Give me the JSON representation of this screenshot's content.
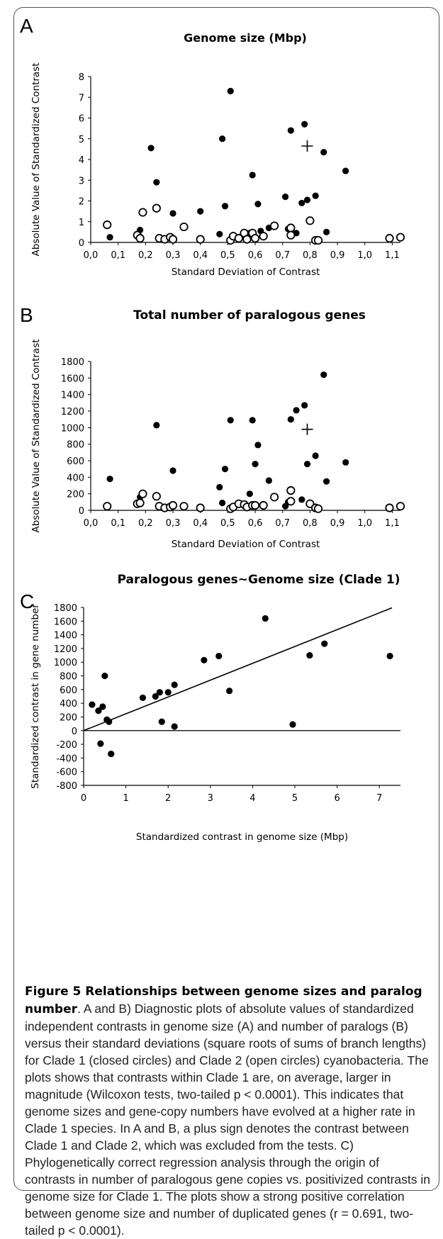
{
  "chart_data": [
    {
      "type": "scatter",
      "panel": "A",
      "title": "Genome size (Mbp)",
      "xlabel": "Standard Deviation of Contrast",
      "ylabel": "Absolute Value of Standardized Contrast",
      "xlim": [
        0,
        1.13
      ],
      "ylim": [
        0,
        8
      ],
      "xticks": [
        "0,0",
        "0,1",
        "0,2",
        "0,3",
        "0,4",
        "0,5",
        "0,6",
        "0,7",
        "0,8",
        "0,9",
        "1,0",
        "1,1"
      ],
      "yticks": [
        "0",
        "1",
        "2",
        "3",
        "4",
        "5",
        "6",
        "7",
        "8"
      ],
      "series": [
        {
          "name": "Clade 1",
          "marker": "closed",
          "points": [
            [
              0.07,
              0.25
            ],
            [
              0.18,
              0.6
            ],
            [
              0.22,
              4.55
            ],
            [
              0.24,
              2.9
            ],
            [
              0.3,
              1.4
            ],
            [
              0.4,
              1.5
            ],
            [
              0.47,
              0.4
            ],
            [
              0.48,
              5.0
            ],
            [
              0.49,
              1.75
            ],
            [
              0.51,
              7.3
            ],
            [
              0.58,
              0.45
            ],
            [
              0.59,
              3.25
            ],
            [
              0.59,
              0.35
            ],
            [
              0.61,
              1.85
            ],
            [
              0.62,
              0.55
            ],
            [
              0.65,
              0.7
            ],
            [
              0.71,
              2.2
            ],
            [
              0.72,
              0.65
            ],
            [
              0.73,
              5.4
            ],
            [
              0.75,
              0.45
            ],
            [
              0.77,
              1.9
            ],
            [
              0.78,
              5.7
            ],
            [
              0.79,
              2.05
            ],
            [
              0.82,
              2.25
            ],
            [
              0.85,
              4.35
            ],
            [
              0.86,
              0.5
            ],
            [
              0.93,
              3.45
            ]
          ]
        },
        {
          "name": "Clade 2",
          "marker": "open",
          "points": [
            [
              0.06,
              0.85
            ],
            [
              0.17,
              0.35
            ],
            [
              0.18,
              0.2
            ],
            [
              0.19,
              1.45
            ],
            [
              0.24,
              1.65
            ],
            [
              0.25,
              0.2
            ],
            [
              0.27,
              0.15
            ],
            [
              0.29,
              0.25
            ],
            [
              0.3,
              0.15
            ],
            [
              0.34,
              0.75
            ],
            [
              0.4,
              0.15
            ],
            [
              0.51,
              0.1
            ],
            [
              0.52,
              0.3
            ],
            [
              0.54,
              0.2
            ],
            [
              0.56,
              0.45
            ],
            [
              0.57,
              0.15
            ],
            [
              0.59,
              0.45
            ],
            [
              0.6,
              0.2
            ],
            [
              0.63,
              0.3
            ],
            [
              0.67,
              0.8
            ],
            [
              0.73,
              0.7
            ],
            [
              0.73,
              0.35
            ],
            [
              0.8,
              1.05
            ],
            [
              0.82,
              0.1
            ],
            [
              0.83,
              0.1
            ],
            [
              1.09,
              0.2
            ],
            [
              1.13,
              0.25
            ]
          ]
        },
        {
          "name": "Clade 1 vs Clade 2",
          "marker": "plus",
          "points": [
            [
              0.79,
              4.65
            ]
          ]
        }
      ]
    },
    {
      "type": "scatter",
      "panel": "B",
      "title": "Total number of paralogous genes",
      "xlabel": "Standard Deviation of Contrast",
      "ylabel": "Absolute Value of Standardized Contrast",
      "xlim": [
        0,
        1.13
      ],
      "ylim": [
        0,
        1800
      ],
      "xticks": [
        "0,0",
        "0,1",
        "0,2",
        "0,3",
        "0,4",
        "0,5",
        "0,6",
        "0,7",
        "0,8",
        "0,9",
        "1,0",
        "1,1"
      ],
      "yticks": [
        "0",
        "200",
        "400",
        "600",
        "800",
        "1000",
        "1200",
        "1400",
        "1600",
        "1800"
      ],
      "series": [
        {
          "name": "Clade 1",
          "marker": "closed",
          "points": [
            [
              0.07,
              380
            ],
            [
              0.18,
              160
            ],
            [
              0.24,
              1030
            ],
            [
              0.3,
              480
            ],
            [
              0.47,
              280
            ],
            [
              0.48,
              90
            ],
            [
              0.49,
              500
            ],
            [
              0.51,
              1090
            ],
            [
              0.58,
              200
            ],
            [
              0.59,
              1090
            ],
            [
              0.6,
              560
            ],
            [
              0.61,
              790
            ],
            [
              0.65,
              360
            ],
            [
              0.71,
              50
            ],
            [
              0.72,
              100
            ],
            [
              0.73,
              1100
            ],
            [
              0.75,
              1210
            ],
            [
              0.77,
              130
            ],
            [
              0.78,
              1270
            ],
            [
              0.79,
              560
            ],
            [
              0.82,
              660
            ],
            [
              0.85,
              1640
            ],
            [
              0.86,
              350
            ],
            [
              0.93,
              580
            ]
          ]
        },
        {
          "name": "Clade 2",
          "marker": "open",
          "points": [
            [
              0.06,
              50
            ],
            [
              0.17,
              80
            ],
            [
              0.18,
              90
            ],
            [
              0.19,
              200
            ],
            [
              0.24,
              170
            ],
            [
              0.25,
              50
            ],
            [
              0.27,
              30
            ],
            [
              0.29,
              40
            ],
            [
              0.3,
              60
            ],
            [
              0.34,
              50
            ],
            [
              0.4,
              30
            ],
            [
              0.51,
              20
            ],
            [
              0.52,
              40
            ],
            [
              0.54,
              80
            ],
            [
              0.56,
              70
            ],
            [
              0.57,
              40
            ],
            [
              0.59,
              60
            ],
            [
              0.6,
              60
            ],
            [
              0.63,
              60
            ],
            [
              0.67,
              160
            ],
            [
              0.73,
              240
            ],
            [
              0.73,
              110
            ],
            [
              0.8,
              80
            ],
            [
              0.82,
              30
            ],
            [
              0.83,
              20
            ],
            [
              1.09,
              30
            ],
            [
              1.13,
              50
            ]
          ]
        },
        {
          "name": "Clade 1 vs Clade 2",
          "marker": "plus",
          "points": [
            [
              0.79,
              980
            ]
          ]
        }
      ]
    },
    {
      "type": "scatter",
      "panel": "C",
      "title": "Paralogous genes~Genome size (Clade 1)",
      "xlabel": "Standardized contrast in genome size (Mbp)",
      "ylabel": "Standardized contrast in gene number",
      "xlim": [
        0,
        7.5
      ],
      "ylim": [
        -800,
        1800
      ],
      "xticks": [
        "0",
        "1",
        "2",
        "3",
        "4",
        "5",
        "6",
        "7"
      ],
      "yticks": [
        "-800",
        "-600",
        "-400",
        "-200",
        "0",
        "200",
        "400",
        "600",
        "800",
        "1000",
        "1200",
        "1400",
        "1600",
        "1800"
      ],
      "regression": {
        "through_origin": true,
        "x": [
          0,
          7.3
        ],
        "y": [
          0,
          1795
        ]
      },
      "series": [
        {
          "name": "Clade 1",
          "marker": "closed",
          "points": [
            [
              0.2,
              380
            ],
            [
              0.35,
              290
            ],
            [
              0.4,
              -190
            ],
            [
              0.45,
              350
            ],
            [
              0.5,
              800
            ],
            [
              0.55,
              160
            ],
            [
              0.6,
              130
            ],
            [
              0.65,
              -340
            ],
            [
              1.4,
              480
            ],
            [
              1.7,
              500
            ],
            [
              1.8,
              560
            ],
            [
              1.85,
              130
            ],
            [
              2.0,
              560
            ],
            [
              2.15,
              60
            ],
            [
              2.15,
              670
            ],
            [
              2.85,
              1030
            ],
            [
              3.2,
              1090
            ],
            [
              3.45,
              580
            ],
            [
              4.3,
              1640
            ],
            [
              4.95,
              90
            ],
            [
              5.35,
              1100
            ],
            [
              5.7,
              1270
            ],
            [
              7.25,
              1090
            ]
          ]
        }
      ]
    }
  ],
  "panel_labels": {
    "a": "A",
    "b": "B",
    "c": "C"
  },
  "caption": {
    "bold": "Figure 5 Relationships between genome sizes and paralog number",
    "text": ". A and B) Diagnostic plots of absolute values of standardized independent contrasts in genome size (A) and number of paralogs (B) versus their standard deviations (square roots of sums of branch lengths) for Clade 1 (closed circles) and Clade 2 (open circles) cyanobacteria. The plots shows that contrasts within Clade 1 are, on average, larger in magnitude (Wilcoxon tests, two-tailed p < 0.0001). This indicates that genome sizes and gene-copy numbers have evolved at a higher rate in Clade 1 species. In A and B, a plus sign denotes the contrast between Clade 1 and Clade 2, which was excluded from the tests. C) Phylogenetically correct regression analysis through the origin of contrasts in number of paralogous gene copies vs. positivized contrasts in genome size for Clade 1. The plots show a strong positive correlation between genome size and number of duplicated genes (r = 0.691, two-tailed p < 0.0001)."
  }
}
